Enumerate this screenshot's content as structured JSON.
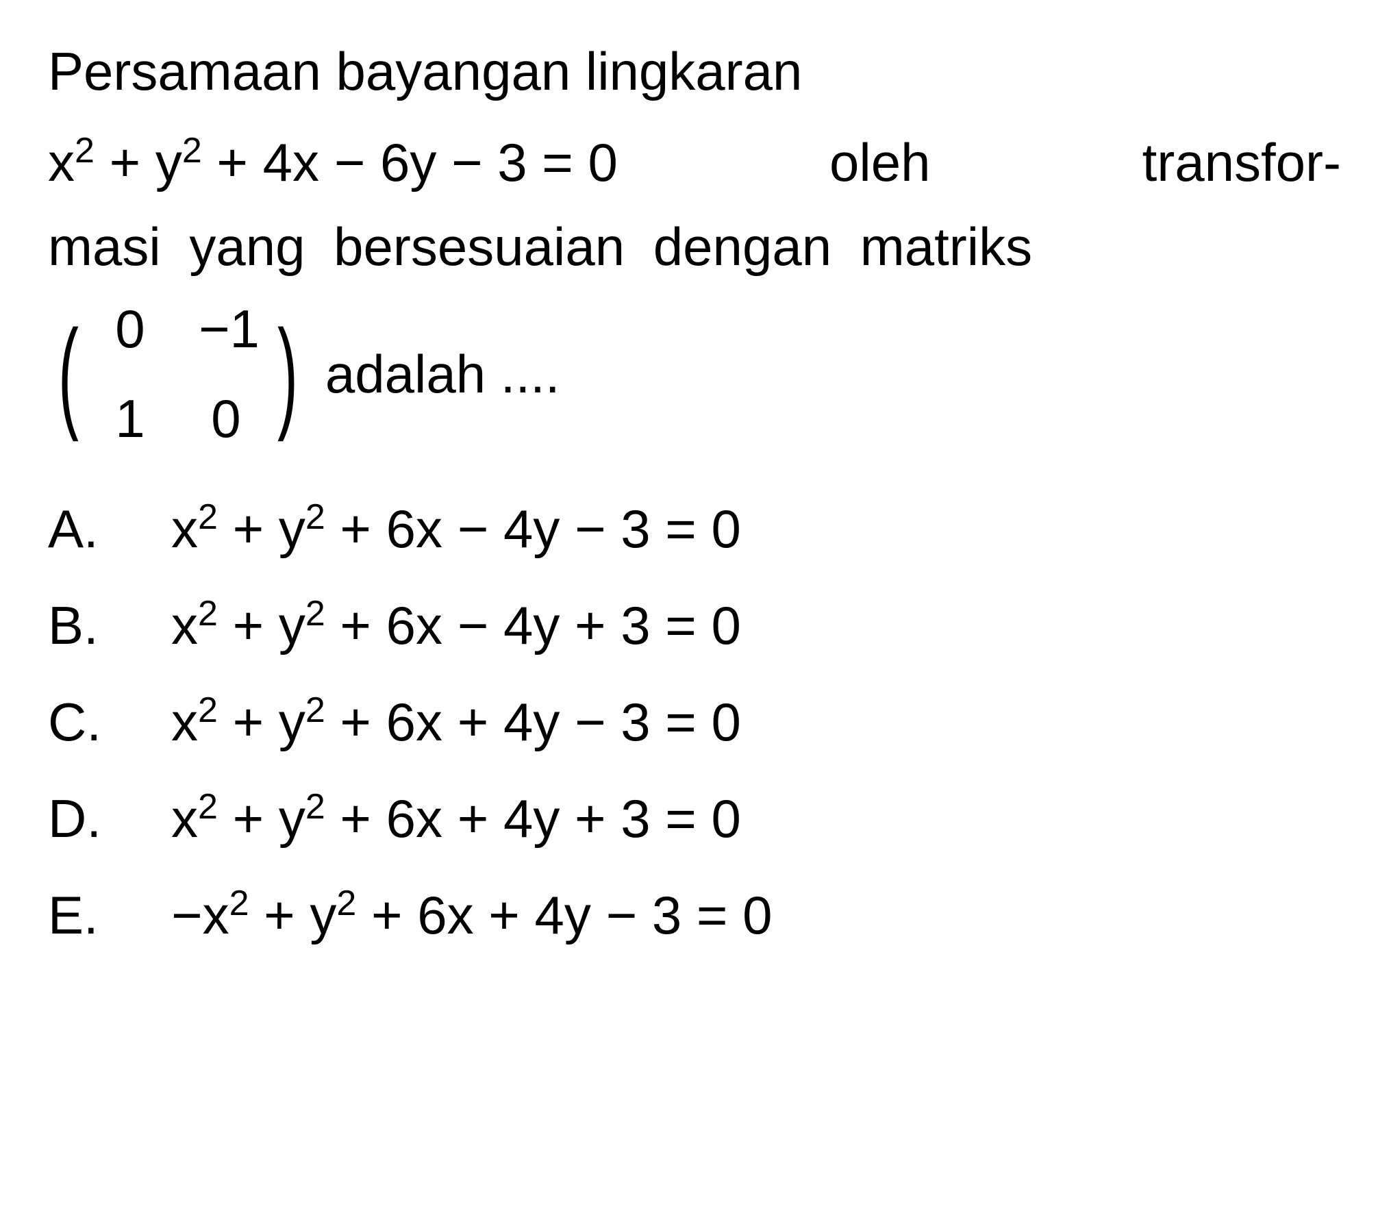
{
  "question": {
    "line1": "Persamaan bayangan lingkaran",
    "equation_lhs": "x",
    "equation_full_html": "x<sup>2</sup> + y<sup>2</sup> + 4x − 6y − 3 = 0",
    "line2_prefix": "x² + y² + 4x − 6y − 3 = 0",
    "line2_word1": "oleh",
    "line2_word2": "transfor-",
    "line3": "masi yang bersesuaian dengan matriks",
    "matrix": {
      "r1c1": "0",
      "r1c2": "−1",
      "r2c1": "1",
      "r2c2": "0"
    },
    "adalah_text": "adalah ....",
    "colors": {
      "text": "#000000",
      "background": "#ffffff"
    },
    "font_size_main": 78,
    "font_size_sup": 52
  },
  "options": {
    "A": {
      "label": "A.",
      "prefix": "x",
      "text_html": "x<sup>2</sup> + y<sup>2</sup> + 6x − 4y − 3 = 0"
    },
    "B": {
      "label": "B.",
      "text_html": "x<sup>2</sup> + y<sup>2</sup> + 6x − 4y + 3 = 0"
    },
    "C": {
      "label": "C.",
      "text_html": "x<sup>2</sup> + y<sup>2</sup> + 6x + 4y − 3 = 0"
    },
    "D": {
      "label": "D.",
      "text_html": "x<sup>2</sup> + y<sup>2</sup> + 6x + 4y + 3 = 0"
    },
    "E": {
      "label": "E.",
      "text_html": "−x<sup>2</sup> + y<sup>2</sup> + 6x + 4y − 3 = 0"
    }
  },
  "texts": {
    "sq": "2",
    "plus": " + ",
    "minus": " − ",
    "eq": " = ",
    "y": "y",
    "x": "x",
    "zero": "0",
    "three": "3",
    "four": "4",
    "six": "6",
    "neg": "−"
  }
}
